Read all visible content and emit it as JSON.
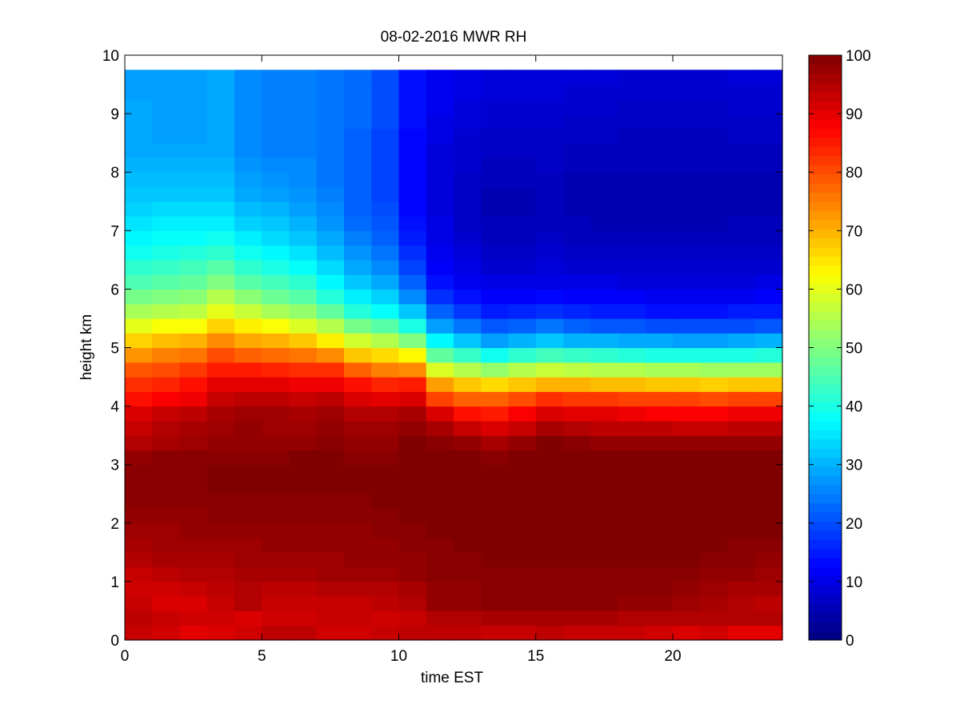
{
  "chart_data": {
    "type": "heatmap",
    "title": "08-02-2016 MWR RH",
    "xlabel": "time EST",
    "ylabel": "height km",
    "xlim": [
      0,
      24
    ],
    "ylim": [
      0,
      10
    ],
    "x_ticks": [
      "0",
      "5",
      "10",
      "15",
      "20"
    ],
    "y_ticks": [
      "0",
      "1",
      "2",
      "3",
      "4",
      "5",
      "6",
      "7",
      "8",
      "9",
      "10"
    ],
    "colorbar": {
      "colormap": "jet",
      "range": [
        0,
        100
      ],
      "ticks": [
        "0",
        "10",
        "20",
        "30",
        "40",
        "50",
        "60",
        "70",
        "80",
        "90",
        "100"
      ]
    },
    "x": [
      0,
      1,
      2,
      3,
      4,
      5,
      6,
      7,
      8,
      9,
      10,
      11,
      12,
      13,
      14,
      15,
      16,
      17,
      18,
      19,
      20,
      21,
      22,
      23
    ],
    "height_km": [
      0,
      0.25,
      0.5,
      0.75,
      1,
      1.25,
      1.5,
      1.75,
      2,
      2.25,
      2.5,
      2.75,
      3,
      3.25,
      3.5,
      3.75,
      4,
      4.25,
      4.5,
      4.75,
      5,
      5.25,
      5.5,
      5.75,
      6,
      6.25,
      6.5,
      6.75,
      7,
      7.25,
      7.5,
      7.75,
      8,
      8.25,
      8.5,
      8.75,
      9,
      9.25,
      9.5
    ],
    "rh_profiles": [
      [
        93,
        92,
        90,
        91,
        92,
        94,
        94,
        92,
        92,
        93,
        94,
        94,
        94,
        93,
        93,
        94,
        93,
        93,
        93,
        92,
        91,
        92,
        90,
        90
      ],
      [
        94,
        93,
        92,
        92,
        91,
        92,
        92,
        93,
        93,
        92,
        93,
        95,
        95,
        96,
        96,
        96,
        96,
        96,
        95,
        95,
        95,
        95,
        95,
        95
      ],
      [
        93,
        91,
        91,
        93,
        95,
        93,
        93,
        93,
        93,
        94,
        95,
        98,
        98,
        99,
        99,
        99,
        99,
        99,
        98,
        98,
        97,
        96,
        95,
        94
      ],
      [
        92,
        92,
        93,
        94,
        95,
        94,
        94,
        95,
        95,
        95,
        96,
        98,
        98,
        99,
        99,
        99,
        99,
        99,
        99,
        99,
        98,
        97,
        96,
        96
      ],
      [
        93,
        94,
        95,
        95,
        96,
        96,
        96,
        97,
        97,
        97,
        98,
        99,
        99,
        99,
        99,
        99,
        99,
        99,
        99,
        99,
        99,
        98,
        98,
        97
      ],
      [
        95,
        96,
        96,
        96,
        97,
        97,
        97,
        97,
        98,
        98,
        98,
        99,
        99,
        100,
        100,
        100,
        100,
        100,
        100,
        100,
        100,
        99,
        99,
        98
      ],
      [
        96,
        97,
        97,
        97,
        97,
        98,
        98,
        98,
        98,
        98,
        99,
        99,
        100,
        100,
        100,
        100,
        100,
        100,
        100,
        100,
        100,
        100,
        99,
        99
      ],
      [
        97,
        97,
        98,
        98,
        98,
        98,
        98,
        98,
        98,
        99,
        99,
        100,
        100,
        100,
        100,
        100,
        100,
        100,
        100,
        100,
        100,
        100,
        100,
        100
      ],
      [
        98,
        98,
        98,
        99,
        99,
        99,
        99,
        99,
        99,
        99,
        100,
        100,
        100,
        100,
        100,
        100,
        100,
        100,
        100,
        100,
        100,
        100,
        100,
        100
      ],
      [
        99,
        99,
        99,
        99,
        99,
        99,
        99,
        99,
        99,
        100,
        100,
        100,
        100,
        100,
        100,
        100,
        100,
        100,
        100,
        100,
        100,
        100,
        100,
        100
      ],
      [
        99,
        99,
        99,
        100,
        100,
        100,
        100,
        100,
        100,
        100,
        100,
        100,
        100,
        100,
        100,
        100,
        100,
        100,
        100,
        100,
        100,
        100,
        100,
        100
      ],
      [
        99,
        99,
        99,
        100,
        100,
        100,
        100,
        100,
        100,
        100,
        100,
        100,
        100,
        100,
        100,
        100,
        100,
        100,
        100,
        100,
        100,
        100,
        100,
        100
      ],
      [
        98,
        99,
        99,
        99,
        99,
        99,
        100,
        100,
        99,
        99,
        100,
        100,
        100,
        99,
        100,
        100,
        100,
        100,
        100,
        100,
        100,
        100,
        100,
        100
      ],
      [
        95,
        96,
        97,
        98,
        98,
        98,
        98,
        99,
        98,
        98,
        100,
        99,
        98,
        96,
        98,
        100,
        99,
        98,
        98,
        98,
        98,
        98,
        98,
        98
      ],
      [
        93,
        95,
        96,
        97,
        98,
        97,
        97,
        98,
        97,
        97,
        98,
        96,
        93,
        91,
        93,
        96,
        95,
        94,
        94,
        94,
        93,
        93,
        94,
        94
      ],
      [
        91,
        93,
        94,
        96,
        97,
        97,
        96,
        97,
        95,
        95,
        96,
        91,
        86,
        85,
        88,
        91,
        90,
        90,
        89,
        88,
        88,
        88,
        89,
        89
      ],
      [
        86,
        88,
        89,
        93,
        94,
        94,
        93,
        94,
        91,
        90,
        91,
        81,
        78,
        78,
        80,
        83,
        82,
        82,
        81,
        81,
        81,
        80,
        81,
        81
      ],
      [
        83,
        84,
        86,
        90,
        90,
        90,
        89,
        89,
        86,
        84,
        85,
        72,
        68,
        66,
        68,
        70,
        70,
        69,
        69,
        68,
        68,
        67,
        68,
        68
      ],
      [
        79,
        80,
        82,
        85,
        85,
        84,
        83,
        83,
        78,
        75,
        74,
        59,
        55,
        52,
        55,
        57,
        56,
        55,
        55,
        54,
        54,
        53,
        53,
        53
      ],
      [
        73,
        75,
        76,
        80,
        78,
        77,
        76,
        74,
        68,
        66,
        63,
        47,
        43,
        39,
        42,
        44,
        43,
        42,
        41,
        40,
        40,
        40,
        40,
        41
      ],
      [
        67,
        69,
        70,
        74,
        71,
        70,
        68,
        64,
        58,
        55,
        50,
        37,
        32,
        28,
        30,
        32,
        30,
        30,
        29,
        29,
        28,
        28,
        29,
        30
      ],
      [
        60,
        62,
        62,
        67,
        64,
        62,
        59,
        55,
        49,
        46,
        40,
        28,
        24,
        21,
        22,
        24,
        22,
        21,
        21,
        20,
        20,
        20,
        20,
        21
      ],
      [
        54,
        55,
        56,
        60,
        57,
        54,
        52,
        47,
        41,
        38,
        32,
        22,
        18,
        15,
        16,
        17,
        16,
        15,
        15,
        14,
        14,
        14,
        15,
        15
      ],
      [
        49,
        50,
        51,
        55,
        51,
        48,
        46,
        41,
        36,
        33,
        26,
        17,
        14,
        12,
        12,
        13,
        12,
        12,
        12,
        11,
        11,
        11,
        11,
        12
      ],
      [
        45,
        46,
        47,
        50,
        46,
        44,
        42,
        37,
        32,
        29,
        22,
        14,
        11,
        10,
        10,
        10,
        10,
        10,
        9,
        9,
        9,
        9,
        9,
        10
      ],
      [
        42,
        43,
        44,
        46,
        42,
        40,
        38,
        34,
        29,
        26,
        19,
        12,
        10,
        8,
        8,
        9,
        8,
        8,
        8,
        8,
        8,
        8,
        8,
        8
      ],
      [
        39,
        40,
        41,
        42,
        39,
        37,
        35,
        31,
        27,
        24,
        17,
        11,
        9,
        7,
        7,
        8,
        7,
        7,
        7,
        7,
        7,
        7,
        7,
        7
      ],
      [
        37,
        38,
        38,
        39,
        36,
        34,
        32,
        29,
        25,
        22,
        15,
        10,
        8,
        6,
        6,
        7,
        6,
        6,
        6,
        6,
        6,
        6,
        6,
        6
      ],
      [
        35,
        36,
        36,
        36,
        33,
        32,
        30,
        27,
        23,
        21,
        14,
        10,
        7,
        6,
        6,
        6,
        6,
        5,
        5,
        5,
        5,
        5,
        6,
        6
      ],
      [
        33,
        34,
        34,
        34,
        31,
        30,
        28,
        26,
        22,
        20,
        13,
        9,
        7,
        5,
        5,
        6,
        5,
        5,
        5,
        5,
        5,
        5,
        5,
        5
      ],
      [
        32,
        32,
        32,
        32,
        29,
        28,
        27,
        25,
        22,
        19,
        13,
        9,
        7,
        5,
        5,
        6,
        5,
        5,
        5,
        5,
        5,
        5,
        5,
        5
      ],
      [
        31,
        31,
        31,
        31,
        28,
        27,
        26,
        24,
        22,
        19,
        13,
        9,
        7,
        6,
        6,
        6,
        5,
        5,
        5,
        5,
        5,
        5,
        5,
        5
      ],
      [
        30,
        30,
        30,
        30,
        27,
        26,
        26,
        24,
        22,
        19,
        13,
        9,
        8,
        6,
        6,
        7,
        6,
        6,
        6,
        6,
        6,
        6,
        6,
        6
      ],
      [
        29,
        29,
        29,
        29,
        26,
        25,
        25,
        24,
        22,
        19,
        13,
        9,
        8,
        7,
        7,
        7,
        6,
        6,
        6,
        6,
        6,
        6,
        6,
        6
      ],
      [
        29,
        28,
        28,
        29,
        26,
        25,
        25,
        24,
        22,
        19,
        13,
        10,
        8,
        7,
        7,
        7,
        7,
        7,
        6,
        6,
        6,
        6,
        7,
        7
      ],
      [
        29,
        28,
        28,
        29,
        26,
        25,
        25,
        24,
        23,
        20,
        14,
        10,
        9,
        8,
        8,
        8,
        7,
        7,
        7,
        7,
        7,
        7,
        7,
        7
      ],
      [
        29,
        28,
        28,
        29,
        26,
        25,
        25,
        24,
        23,
        20,
        14,
        11,
        9,
        8,
        8,
        8,
        8,
        8,
        7,
        7,
        7,
        7,
        8,
        8
      ],
      [
        28,
        28,
        28,
        29,
        26,
        25,
        25,
        24,
        23,
        20,
        14,
        11,
        10,
        9,
        9,
        9,
        8,
        8,
        8,
        8,
        8,
        8,
        8,
        8
      ],
      [
        28,
        28,
        28,
        29,
        26,
        25,
        25,
        24,
        23,
        20,
        14,
        11,
        10,
        9,
        9,
        9,
        9,
        9,
        8,
        8,
        8,
        8,
        9,
        9
      ]
    ]
  }
}
